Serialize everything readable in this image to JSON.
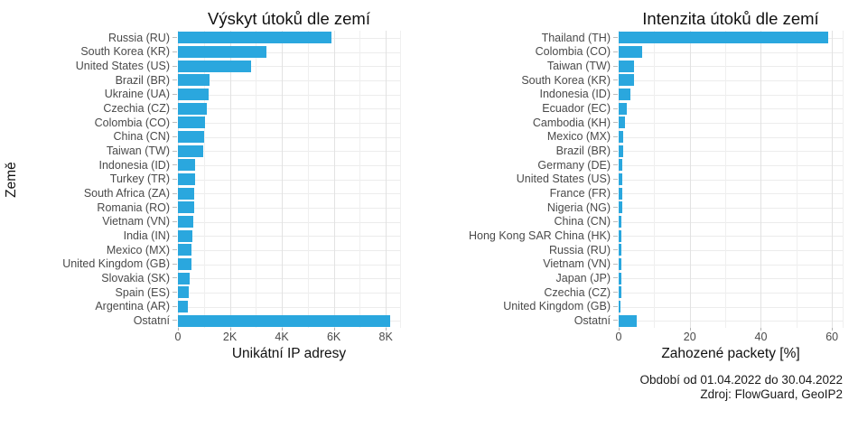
{
  "caption": {
    "period": "Období od 01.04.2022 do 30.04.2022",
    "source": "Zdroj: FlowGuard, GeoIP2"
  },
  "colors": {
    "bar": "#2aa7de",
    "grid_major": "#e2e2e2",
    "grid_minor": "#efefef",
    "axis_tick": "#b3b3b3",
    "label_text": "#4a4a4a",
    "title_text": "#111111"
  },
  "chart_data": [
    {
      "type": "bar",
      "orientation": "horizontal",
      "title": "Výskyt útoků dle zemí",
      "xlabel": "Unikátní IP adresy",
      "ylabel": "Země",
      "grid": true,
      "xlim": [
        0,
        8550
      ],
      "xmax": 8550,
      "xticks": [
        {
          "value": 0,
          "label": "0"
        },
        {
          "value": 2000,
          "label": "2K"
        },
        {
          "value": 4000,
          "label": "4K"
        },
        {
          "value": 6000,
          "label": "6K"
        },
        {
          "value": 8000,
          "label": "8K"
        }
      ],
      "grid_minor": [
        1000,
        3000,
        5000,
        7000
      ],
      "categories": [
        "Russia (RU)",
        "South Korea (KR)",
        "United States (US)",
        "Brazil (BR)",
        "Ukraine (UA)",
        "Czechia (CZ)",
        "Colombia (CO)",
        "China (CN)",
        "Taiwan (TW)",
        "Indonesia (ID)",
        "Turkey (TR)",
        "South Africa (ZA)",
        "Romania (RO)",
        "Vietnam (VN)",
        "India (IN)",
        "Mexico (MX)",
        "United Kingdom (GB)",
        "Slovakia (SK)",
        "Spain (ES)",
        "Argentina (AR)",
        "Ostatní"
      ],
      "values": [
        5900,
        3400,
        2800,
        1230,
        1170,
        1100,
        1060,
        1020,
        970,
        660,
        645,
        640,
        620,
        590,
        570,
        530,
        515,
        450,
        425,
        390,
        8170
      ]
    },
    {
      "type": "bar",
      "orientation": "horizontal",
      "title": "Intenzita útoků dle zemí",
      "xlabel": "Zahozené packety [%]",
      "grid": true,
      "xlim": [
        0,
        63
      ],
      "xmax": 63,
      "xticks": [
        {
          "value": 0,
          "label": "0"
        },
        {
          "value": 20,
          "label": "20"
        },
        {
          "value": 40,
          "label": "40"
        },
        {
          "value": 60,
          "label": "60"
        }
      ],
      "grid_minor": [
        10,
        30,
        50
      ],
      "categories": [
        "Thailand (TH)",
        "Colombia (CO)",
        "Taiwan (TW)",
        "South Korea (KR)",
        "Indonesia (ID)",
        "Ecuador (EC)",
        "Cambodia (KH)",
        "Mexico (MX)",
        "Brazil (BR)",
        "Germany (DE)",
        "United States (US)",
        "France (FR)",
        "Nigeria (NG)",
        "China (CN)",
        "Hong Kong SAR China (HK)",
        "Russia (RU)",
        "Vietnam (VN)",
        "Japan (JP)",
        "Czechia (CZ)",
        "United Kingdom (GB)",
        "Ostatní"
      ],
      "values": [
        59,
        6.5,
        4.4,
        4.4,
        3.4,
        2.4,
        1.9,
        1.3,
        1.15,
        1.1,
        1.0,
        0.95,
        0.9,
        0.85,
        0.85,
        0.8,
        0.75,
        0.7,
        0.65,
        0.55,
        5.0
      ]
    }
  ]
}
